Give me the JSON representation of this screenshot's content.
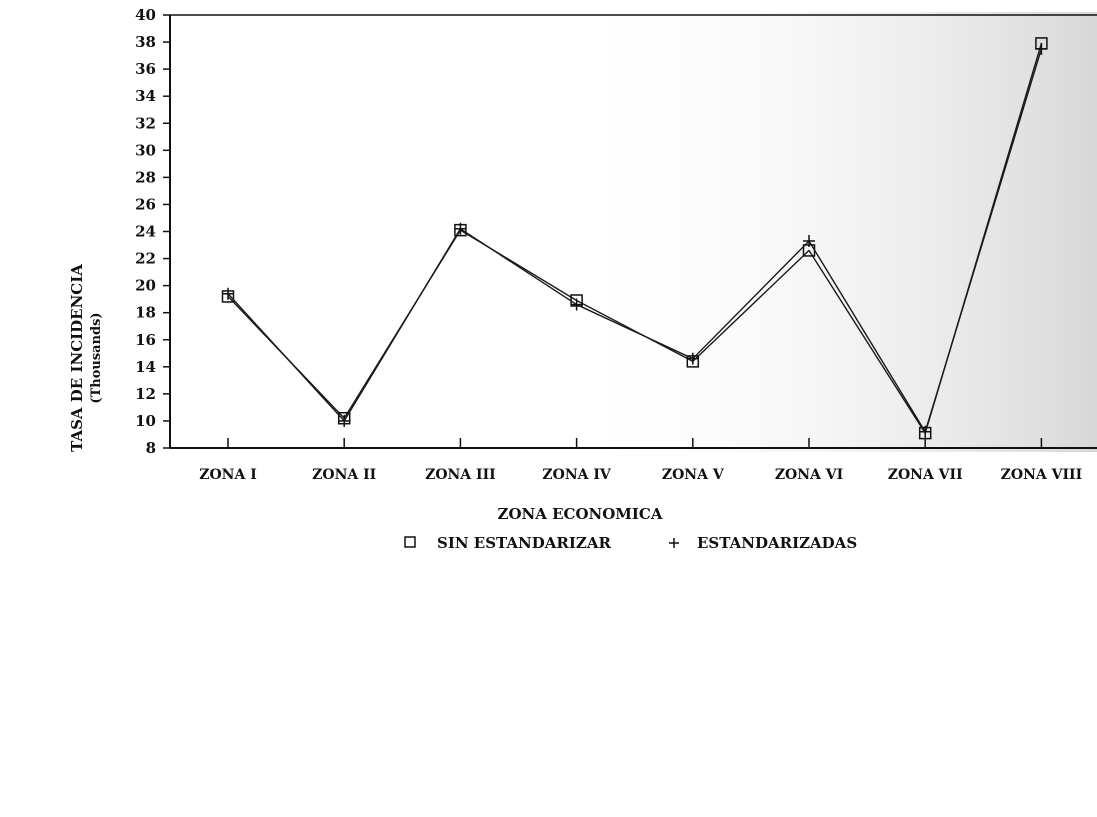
{
  "chart_data": {
    "type": "line",
    "categories": [
      "ZONA I",
      "ZONA II",
      "ZONA III",
      "ZONA IV",
      "ZONA V",
      "ZONA VI",
      "ZONA VII",
      "ZONA VIII"
    ],
    "series": [
      {
        "name": "SIN ESTANDARIZAR",
        "marker": "square",
        "values": [
          19.2,
          10.2,
          24.1,
          18.9,
          14.4,
          22.6,
          9.1,
          37.9
        ]
      },
      {
        "name": "ESTANDARIZADAS",
        "marker": "plus",
        "values": [
          19.4,
          10.0,
          24.2,
          18.6,
          14.6,
          23.3,
          9.2,
          37.5
        ]
      }
    ],
    "xlabel": "ZONA ECONOMICA",
    "ylabel": "TASA DE INCIDENCIA",
    "ylabel_sub": "(Thousands)",
    "ylim": [
      8,
      40
    ],
    "y_step": 2,
    "grid": false,
    "legend_placement": "bottom-center",
    "line_color": "#1a1a1a",
    "background_color": "#ffffff"
  }
}
